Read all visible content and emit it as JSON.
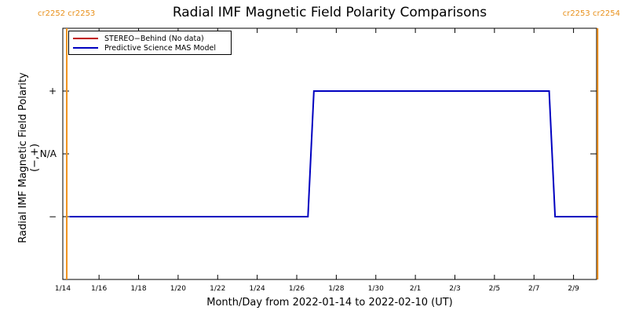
{
  "chart_data": {
    "type": "line",
    "title": "Radial IMF Magnetic Field Polarity Comparisons",
    "xlabel": "Month/Day from 2022-01-14 to 2022-02-10 (UT)",
    "ylabel": "Radial IMF Magnetic Field Polarity (−,+)",
    "x_range_days": [
      0,
      27
    ],
    "y_ticks": [
      {
        "value": 1,
        "label": "+"
      },
      {
        "value": 0,
        "label": "N/A"
      },
      {
        "value": -1,
        "label": "−"
      }
    ],
    "ylim": [
      -2,
      2
    ],
    "x_ticks": [
      {
        "day": 0,
        "label": "1/14"
      },
      {
        "day": 1.833,
        "label": "1/16"
      },
      {
        "day": 3.833,
        "label": "1/18"
      },
      {
        "day": 5.833,
        "label": "1/20"
      },
      {
        "day": 7.833,
        "label": "1/22"
      },
      {
        "day": 9.833,
        "label": "1/24"
      },
      {
        "day": 11.833,
        "label": "1/26"
      },
      {
        "day": 13.833,
        "label": "1/28"
      },
      {
        "day": 15.833,
        "label": "1/30"
      },
      {
        "day": 17.833,
        "label": "2/1"
      },
      {
        "day": 19.833,
        "label": "2/3"
      },
      {
        "day": 21.833,
        "label": "2/5"
      },
      {
        "day": 23.833,
        "label": "2/7"
      },
      {
        "day": 25.833,
        "label": "2/9"
      }
    ],
    "carrington_markers": [
      {
        "day": 0.2,
        "label": "cr2252 cr2253",
        "side": "left"
      },
      {
        "day": 27.05,
        "label": "cr2253 cr2254",
        "side": "right"
      }
    ],
    "series": [
      {
        "name": "STEREO−Behind (No data)",
        "color": "#c00000",
        "x": [],
        "y": []
      },
      {
        "name": "Predictive Science MAS Model",
        "color": "#0000c0",
        "x": [
          0.33,
          12.4,
          12.7,
          24.6,
          24.9,
          27.05
        ],
        "y": [
          -1,
          -1,
          1,
          1,
          -1,
          -1
        ]
      }
    ],
    "colors": {
      "axis": "#000000",
      "cr_marker": "#f0921e"
    },
    "grid": false,
    "legend_position": "top-left"
  }
}
